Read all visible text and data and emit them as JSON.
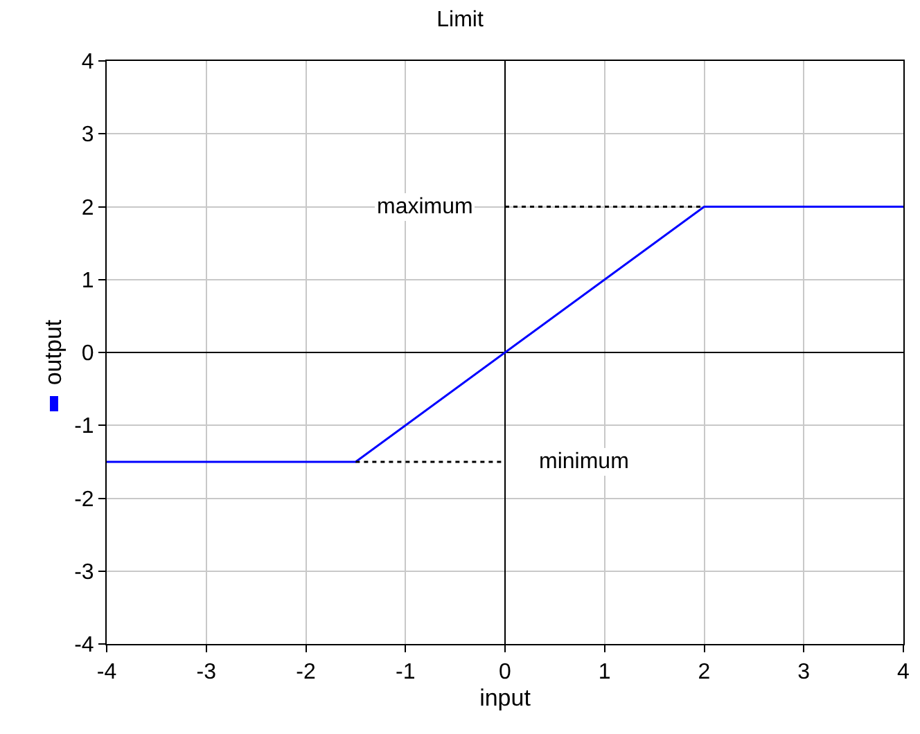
{
  "chart_data": {
    "type": "line",
    "title": "Limit",
    "xlabel": "input",
    "ylabel": "output",
    "xlim": [
      -4,
      4
    ],
    "xticks": [
      -4,
      -3,
      -2,
      -1,
      0,
      1,
      2,
      3,
      4
    ],
    "ylim": [
      -4,
      4
    ],
    "yticks": [
      -4,
      -3,
      -2,
      -1,
      0,
      1,
      2,
      3,
      4
    ],
    "grid": true,
    "marker": "none",
    "series": [
      {
        "color": "#0000ff",
        "x": [
          -4,
          -1.5,
          2,
          4
        ],
        "values": [
          -1.5,
          -1.5,
          2,
          2
        ],
        "line_style": "solid"
      },
      {
        "name": "maximum",
        "color": "#000000",
        "x": [
          0,
          2
        ],
        "values": [
          2,
          2
        ],
        "line_style": "dashed"
      },
      {
        "name": "minimum",
        "color": "#000000",
        "x": [
          -1.5,
          0
        ],
        "values": [
          -1.5,
          -1.5
        ],
        "line_style": "dashed"
      }
    ]
  }
}
